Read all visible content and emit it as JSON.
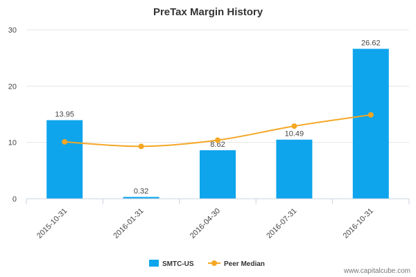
{
  "chart_data": {
    "type": "bar",
    "title": "PreTax Margin History",
    "categories": [
      "2015-10-31",
      "2016-01-31",
      "2016-04-30",
      "2016-07-31",
      "2016-10-31"
    ],
    "series": [
      {
        "name": "SMTC-US",
        "kind": "bar",
        "color": "#0ea5ec",
        "values": [
          13.95,
          0.32,
          8.62,
          10.49,
          26.62
        ],
        "labels": [
          "13.95",
          "0.32",
          "8.62",
          "10.49",
          "26.62"
        ]
      },
      {
        "name": "Peer Median",
        "kind": "line",
        "color": "#f5a623",
        "values": [
          10.1,
          9.3,
          10.4,
          12.9,
          14.9
        ]
      }
    ],
    "ylim": [
      0,
      30
    ],
    "yticks": [
      "0",
      "10",
      "20",
      "30"
    ],
    "grid": true,
    "legend_position": "bottom-center"
  },
  "credit": "www.capitalcube.com"
}
